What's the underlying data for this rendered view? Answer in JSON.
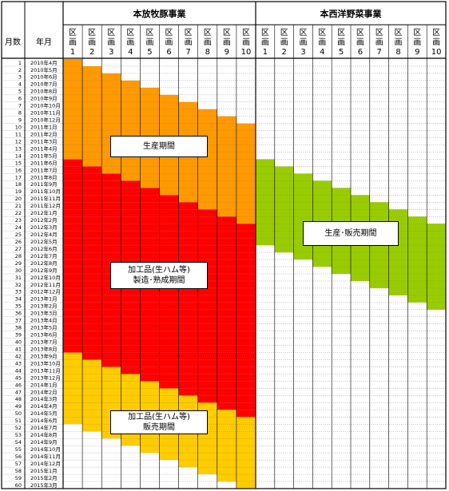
{
  "chart_data": {
    "type": "gantt",
    "header": {
      "month_count_label": "月数",
      "year_month_label": "年月",
      "section_a_title": "本放牧豚事業",
      "section_b_title": "本西洋野菜事業",
      "lot_label_chars": [
        "区",
        "画"
      ]
    },
    "lots": [
      "1",
      "2",
      "3",
      "4",
      "5",
      "6",
      "7",
      "8",
      "9",
      "10"
    ],
    "rows": [
      {
        "n": "1",
        "ym": "2010年4月"
      },
      {
        "n": "2",
        "ym": "2010年5月"
      },
      {
        "n": "3",
        "ym": "2010年6月"
      },
      {
        "n": "4",
        "ym": "2010年7月"
      },
      {
        "n": "5",
        "ym": "2010年8月"
      },
      {
        "n": "6",
        "ym": "2010年9月"
      },
      {
        "n": "7",
        "ym": "2010年10月"
      },
      {
        "n": "8",
        "ym": "2010年11月"
      },
      {
        "n": "9",
        "ym": "2010年12月"
      },
      {
        "n": "10",
        "ym": "2011年1月"
      },
      {
        "n": "11",
        "ym": "2011年2月"
      },
      {
        "n": "12",
        "ym": "2011年3月"
      },
      {
        "n": "13",
        "ym": "2011年4月"
      },
      {
        "n": "14",
        "ym": "2011年5月"
      },
      {
        "n": "15",
        "ym": "2011年6月"
      },
      {
        "n": "16",
        "ym": "2011年7月"
      },
      {
        "n": "17",
        "ym": "2011年8月"
      },
      {
        "n": "18",
        "ym": "2011年9月"
      },
      {
        "n": "19",
        "ym": "2011年10月"
      },
      {
        "n": "20",
        "ym": "2011年11月"
      },
      {
        "n": "21",
        "ym": "2011年12月"
      },
      {
        "n": "22",
        "ym": "2012年1月"
      },
      {
        "n": "23",
        "ym": "2012年2月"
      },
      {
        "n": "24",
        "ym": "2012年3月"
      },
      {
        "n": "25",
        "ym": "2012年4月"
      },
      {
        "n": "26",
        "ym": "2012年5月"
      },
      {
        "n": "27",
        "ym": "2012年6月"
      },
      {
        "n": "28",
        "ym": "2012年7月"
      },
      {
        "n": "29",
        "ym": "2012年8月"
      },
      {
        "n": "30",
        "ym": "2012年9月"
      },
      {
        "n": "31",
        "ym": "2012年10月"
      },
      {
        "n": "32",
        "ym": "2012年11月"
      },
      {
        "n": "33",
        "ym": "2012年12月"
      },
      {
        "n": "34",
        "ym": "2013年1月"
      },
      {
        "n": "35",
        "ym": "2013年2月"
      },
      {
        "n": "36",
        "ym": "2013年3月"
      },
      {
        "n": "37",
        "ym": "2013年4月"
      },
      {
        "n": "38",
        "ym": "2013年5月"
      },
      {
        "n": "39",
        "ym": "2013年6月"
      },
      {
        "n": "40",
        "ym": "2013年7月"
      },
      {
        "n": "41",
        "ym": "2013年8月"
      },
      {
        "n": "42",
        "ym": "2013年9月"
      },
      {
        "n": "43",
        "ym": "2013年10月"
      },
      {
        "n": "44",
        "ym": "2013年11月"
      },
      {
        "n": "45",
        "ym": "2013年12月"
      },
      {
        "n": "46",
        "ym": "2014年1月"
      },
      {
        "n": "47",
        "ym": "2014年2月"
      },
      {
        "n": "48",
        "ym": "2014年3月"
      },
      {
        "n": "49",
        "ym": "2014年4月"
      },
      {
        "n": "50",
        "ym": "2014年5月"
      },
      {
        "n": "51",
        "ym": "2014年6月"
      },
      {
        "n": "52",
        "ym": "2014年7月"
      },
      {
        "n": "53",
        "ym": "2014年8月"
      },
      {
        "n": "54",
        "ym": "2014年9月"
      },
      {
        "n": "55",
        "ym": "2014年10月"
      },
      {
        "n": "56",
        "ym": "2014年11月"
      },
      {
        "n": "57",
        "ym": "2014年12月"
      },
      {
        "n": "58",
        "ym": "2015年1月"
      },
      {
        "n": "59",
        "ym": "2015年2月"
      },
      {
        "n": "60",
        "ym": "2015年3月"
      }
    ],
    "pig_phases": [
      {
        "name": "生産期間",
        "color": "#FF9900",
        "start": [
          1,
          2,
          3,
          4,
          5,
          6,
          7,
          8,
          9,
          10
        ],
        "end": [
          14,
          15,
          16,
          17,
          18,
          19,
          20,
          21,
          22,
          23
        ]
      },
      {
        "name": "加工品(生ハム等)製造・熟成期間",
        "color": "#FF0000",
        "start": [
          15,
          16,
          17,
          18,
          19,
          20,
          21,
          22,
          23,
          24
        ],
        "end": [
          41,
          42,
          43,
          44,
          45,
          46,
          47,
          48,
          49,
          50
        ]
      },
      {
        "name": "加工品(生ハム等)販売期間",
        "color": "#FFCC00",
        "start": [
          42,
          43,
          44,
          45,
          46,
          47,
          48,
          49,
          50,
          51
        ],
        "end": [
          51,
          52,
          53,
          54,
          55,
          56,
          57,
          58,
          59,
          60
        ]
      }
    ],
    "veg_phases": [
      {
        "name": "生産・販売期間",
        "color": "#99CC00",
        "start": [
          15,
          16,
          17,
          18,
          19,
          20,
          21,
          22,
          23,
          24
        ],
        "end": [
          26,
          27,
          28,
          29,
          30,
          31,
          32,
          33,
          34,
          35
        ]
      }
    ],
    "labels": {
      "production": "生産期間",
      "processing_line1": "加工品(生ハム等)",
      "processing_line2": "製造･熟成期間",
      "sales_line1": "加工品(生ハム等)",
      "sales_line2": "販売期間",
      "veg": "生産･販売期間"
    }
  }
}
